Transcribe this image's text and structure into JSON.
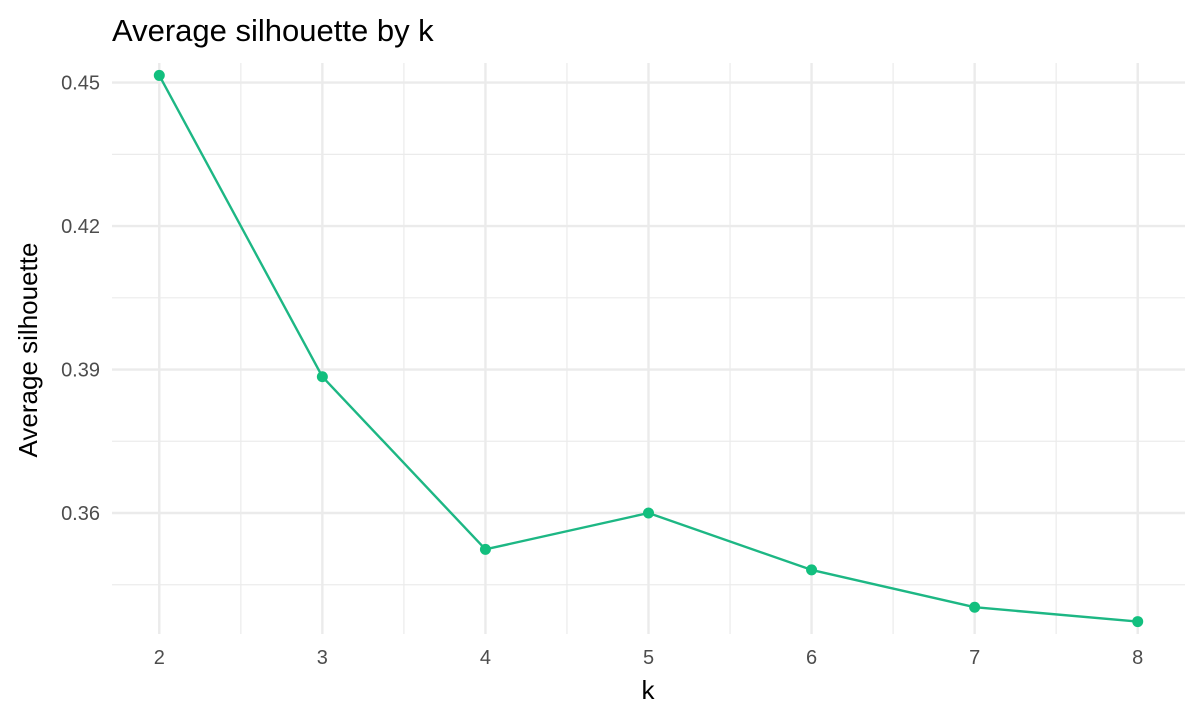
{
  "chart_data": {
    "type": "line",
    "title": "Average silhouette by k",
    "xlabel": "k",
    "ylabel": "Average silhouette",
    "x": [
      2,
      3,
      4,
      5,
      6,
      7,
      8
    ],
    "series": [
      {
        "values": [
          0.4515,
          0.3885,
          0.3524,
          0.36,
          0.3481,
          0.3403,
          0.3373
        ]
      }
    ],
    "xlim": [
      1.71,
      8.29
    ],
    "ylim": [
      0.3347,
      0.4541
    ],
    "x_ticks": [
      "2",
      "3",
      "4",
      "5",
      "6",
      "7",
      "8"
    ],
    "y_ticks": [
      "0.36",
      "0.39",
      "0.42",
      "0.45"
    ],
    "grid": true,
    "line_color": "#1db784",
    "point_color": "#12bf7e",
    "grid_color": "#ebebeb"
  }
}
